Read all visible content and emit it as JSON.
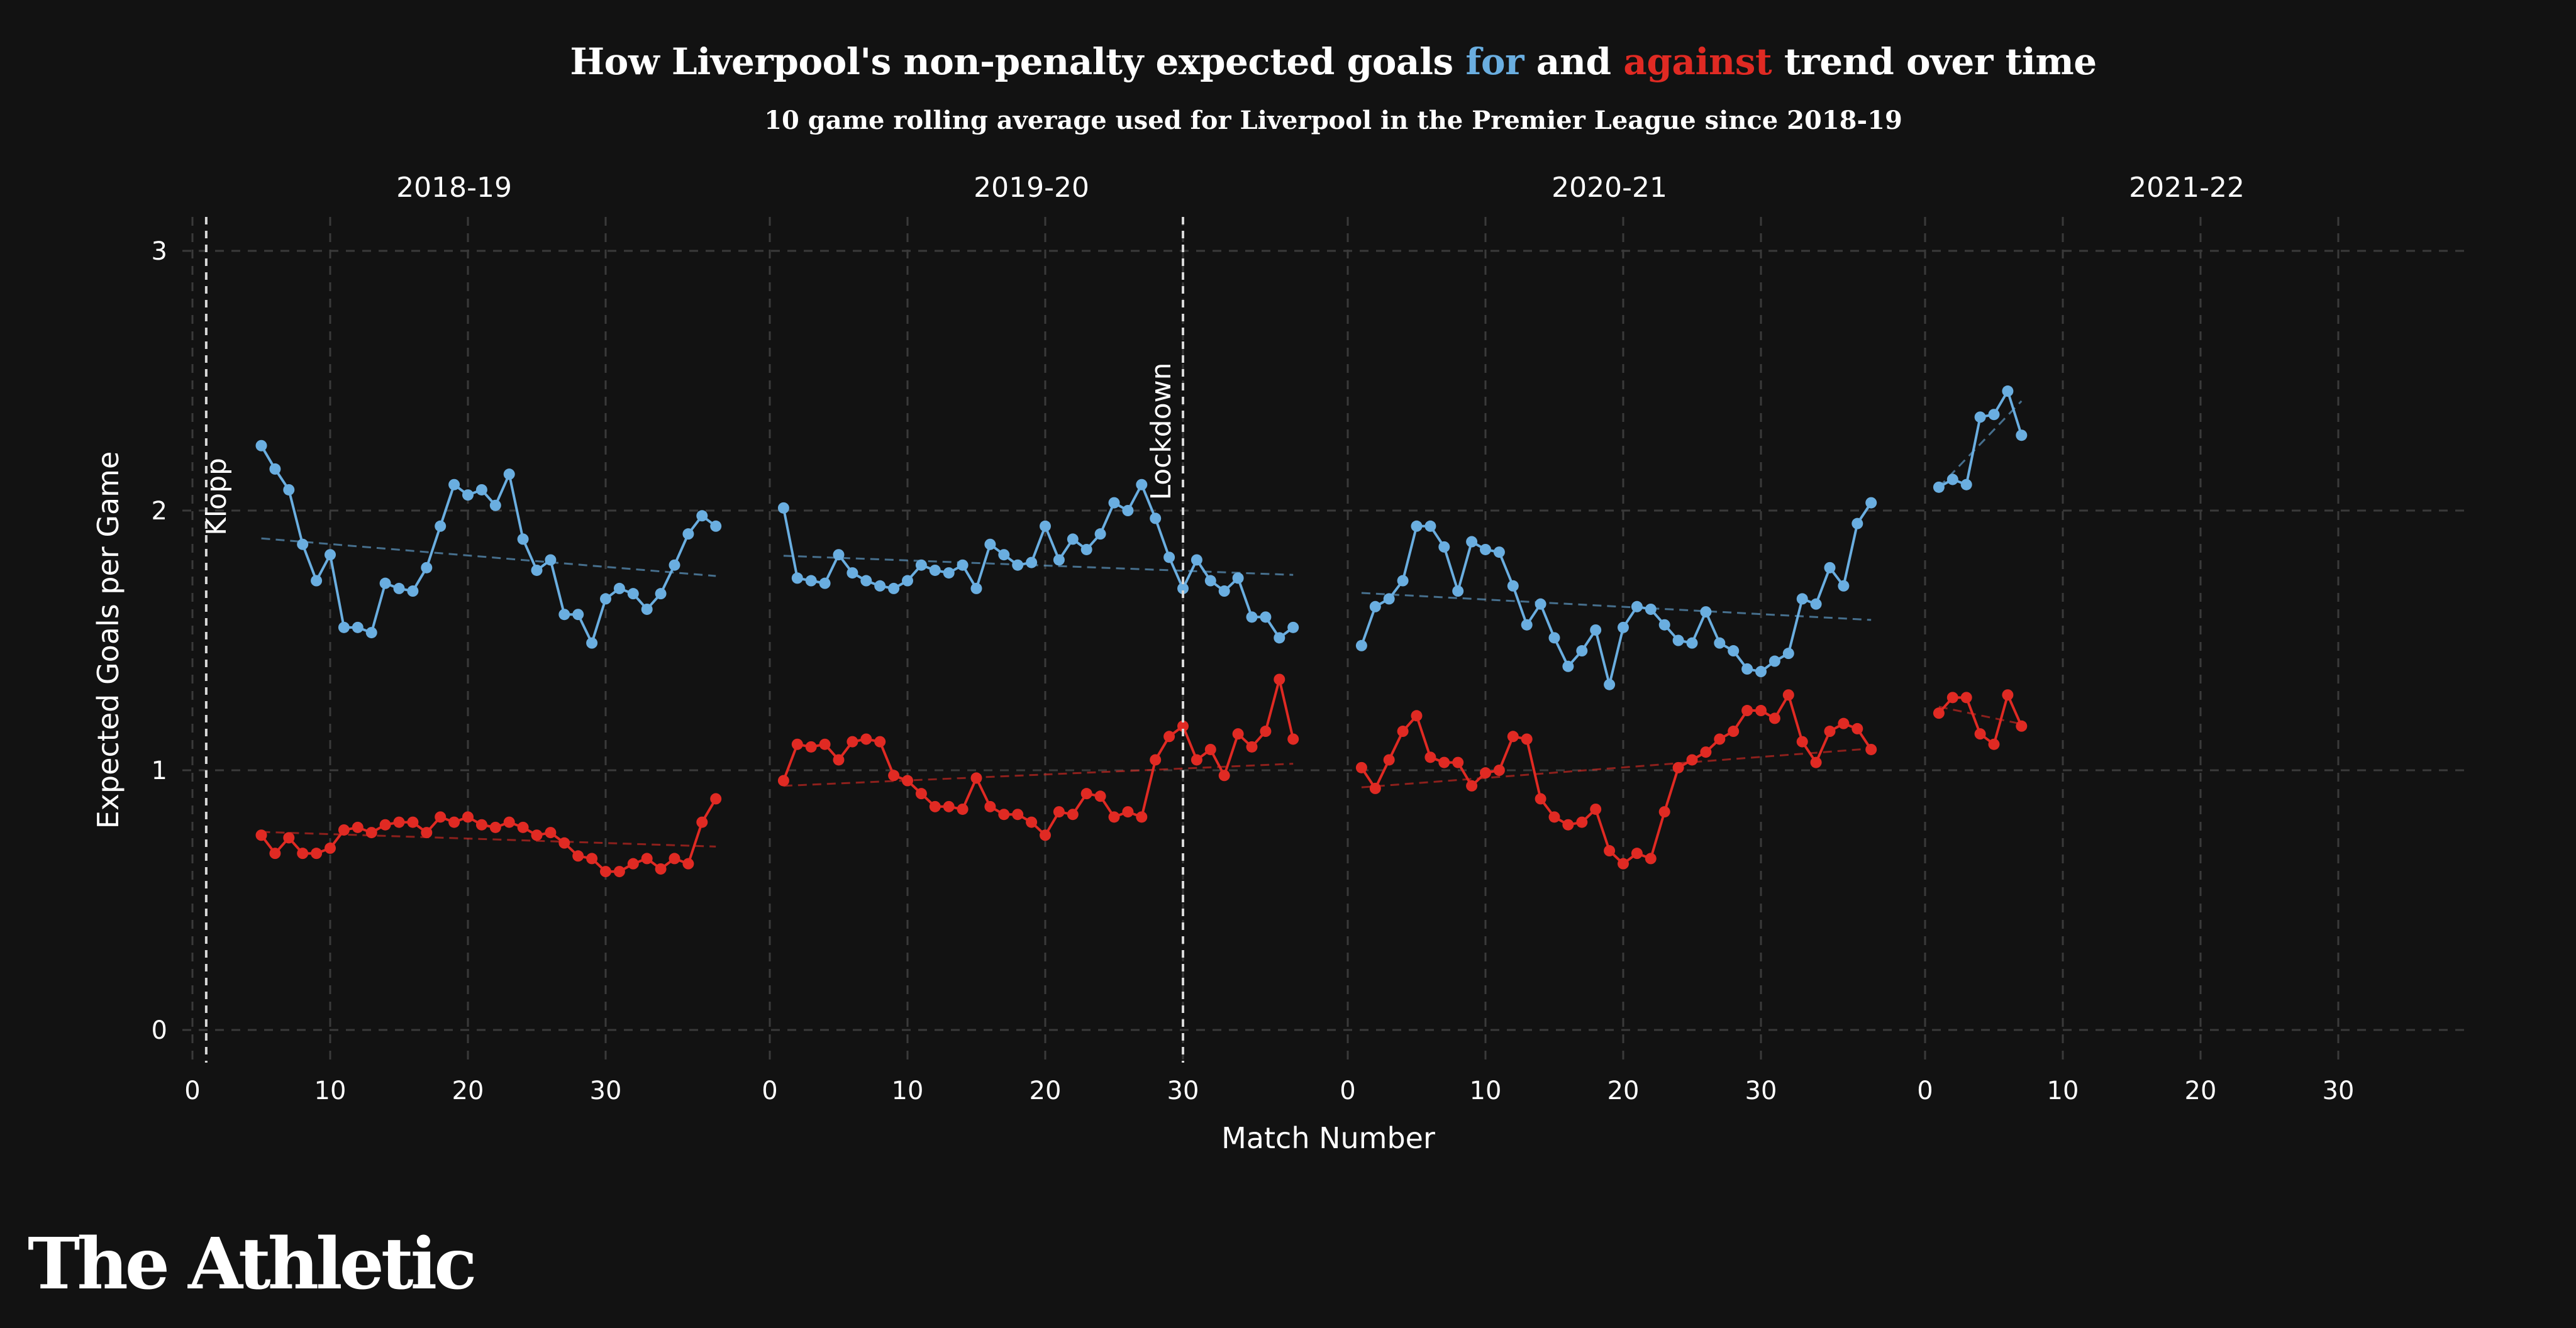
{
  "header": {
    "title_part1": "How Liverpool's non-penalty expected goals ",
    "title_for": "for",
    "title_and": " and ",
    "title_against": "against",
    "title_part2": " trend over time",
    "subtitle": "10 game rolling average used for Liverpool in the Premier League since 2018-19"
  },
  "brand": {
    "name": "The Athletic"
  },
  "colors": {
    "for": "#6aaee0",
    "against": "#e02a23",
    "background": "#121212",
    "grid": "#3a3a3a"
  },
  "chart_data": {
    "type": "line",
    "xlabel": "Match Number",
    "ylabel": "Expected Goals per Game",
    "ylim": [
      0,
      3
    ],
    "yticks": [
      0,
      1,
      2,
      3
    ],
    "xlim": [
      0,
      38
    ],
    "xticks": [
      0,
      10,
      20,
      30
    ],
    "grid": true,
    "trendlines": true,
    "series_names": [
      "for",
      "against"
    ],
    "facets": [
      {
        "season": "2018-19",
        "for": {
          "x_start": 5,
          "values": [
            2.25,
            2.16,
            2.08,
            1.87,
            1.73,
            1.83,
            1.55,
            1.55,
            1.53,
            1.72,
            1.7,
            1.69,
            1.78,
            1.94,
            2.1,
            2.06,
            2.08,
            2.02,
            2.14,
            1.89,
            1.77,
            1.81,
            1.6,
            1.6,
            1.49,
            1.66,
            1.7,
            1.68,
            1.62,
            1.68,
            1.79,
            1.91,
            1.98,
            1.94
          ]
        },
        "against": {
          "x_start": 5,
          "values": [
            0.75,
            0.68,
            0.74,
            0.68,
            0.68,
            0.7,
            0.77,
            0.78,
            0.76,
            0.79,
            0.8,
            0.8,
            0.76,
            0.82,
            0.8,
            0.82,
            0.79,
            0.78,
            0.8,
            0.78,
            0.75,
            0.76,
            0.72,
            0.67,
            0.66,
            0.61,
            0.61,
            0.64,
            0.66,
            0.62,
            0.66,
            0.64,
            0.8,
            0.89
          ]
        },
        "annotation": {
          "text": "Klopp",
          "x": 1
        }
      },
      {
        "season": "2019-20",
        "for": {
          "x_start": 1,
          "values": [
            2.01,
            1.74,
            1.73,
            1.72,
            1.83,
            1.76,
            1.73,
            1.71,
            1.7,
            1.73,
            1.79,
            1.77,
            1.76,
            1.79,
            1.7,
            1.87,
            1.83,
            1.79,
            1.8,
            1.94,
            1.81,
            1.89,
            1.85,
            1.91,
            2.03,
            2.0,
            2.1,
            1.97,
            1.82,
            1.7,
            1.81,
            1.73,
            1.69,
            1.74,
            1.59,
            1.59,
            1.51,
            1.55
          ]
        },
        "against": {
          "x_start": 1,
          "values": [
            0.96,
            1.1,
            1.09,
            1.1,
            1.04,
            1.11,
            1.12,
            1.11,
            0.98,
            0.96,
            0.91,
            0.86,
            0.86,
            0.85,
            0.97,
            0.86,
            0.83,
            0.83,
            0.8,
            0.75,
            0.84,
            0.83,
            0.91,
            0.9,
            0.82,
            0.84,
            0.82,
            1.04,
            1.13,
            1.17,
            1.04,
            1.08,
            0.98,
            1.14,
            1.09,
            1.15,
            1.35,
            1.12
          ]
        },
        "annotation": {
          "text": "Lockdown",
          "x": 30
        }
      },
      {
        "season": "2020-21",
        "for": {
          "x_start": 1,
          "values": [
            1.48,
            1.63,
            1.66,
            1.73,
            1.94,
            1.94,
            1.86,
            1.69,
            1.88,
            1.85,
            1.84,
            1.71,
            1.56,
            1.64,
            1.51,
            1.4,
            1.46,
            1.54,
            1.33,
            1.55,
            1.63,
            1.62,
            1.56,
            1.5,
            1.49,
            1.61,
            1.49,
            1.46,
            1.39,
            1.38,
            1.42,
            1.45,
            1.66,
            1.64,
            1.78,
            1.71,
            1.95,
            2.03
          ]
        },
        "against": {
          "x_start": 1,
          "values": [
            1.01,
            0.93,
            1.04,
            1.15,
            1.21,
            1.05,
            1.03,
            1.03,
            0.94,
            0.99,
            1.0,
            1.13,
            1.12,
            0.89,
            0.82,
            0.79,
            0.8,
            0.85,
            0.69,
            0.64,
            0.68,
            0.66,
            0.84,
            1.01,
            1.04,
            1.07,
            1.12,
            1.15,
            1.23,
            1.23,
            1.2,
            1.29,
            1.11,
            1.03,
            1.15,
            1.18,
            1.16,
            1.08
          ]
        }
      },
      {
        "season": "2021-22",
        "for": {
          "x_start": 1,
          "values": [
            2.09,
            2.12,
            2.1,
            2.36,
            2.37,
            2.46,
            2.29
          ]
        },
        "against": {
          "x_start": 1,
          "values": [
            1.22,
            1.28,
            1.28,
            1.14,
            1.1,
            1.29,
            1.17
          ]
        }
      }
    ]
  }
}
